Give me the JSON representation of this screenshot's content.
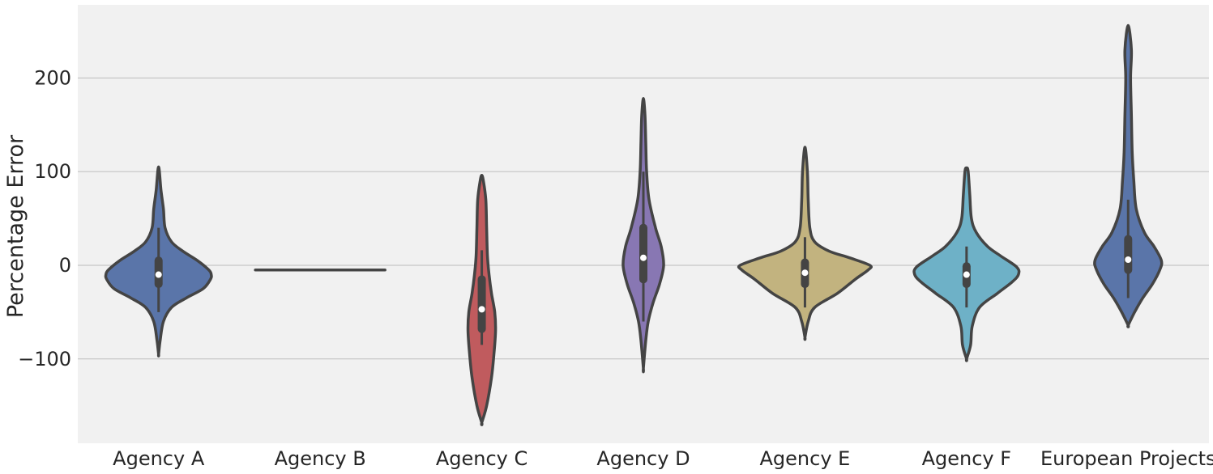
{
  "chart_data": {
    "type": "violin",
    "title": "",
    "xlabel": "",
    "ylabel": "Percentage Error",
    "ylim": [
      -190,
      278
    ],
    "yticks": [
      -100,
      0,
      100,
      200
    ],
    "ytick_labels": [
      "−100",
      "0",
      "100",
      "200"
    ],
    "grid": true,
    "categories": [
      "Agency A",
      "Agency B",
      "Agency C",
      "Agency D",
      "Agency E",
      "Agency F",
      "European Projects"
    ],
    "series": [
      {
        "category": "Agency A",
        "color": "#5a75a9",
        "min": -95,
        "max": 105,
        "q1": -20,
        "median": -10,
        "q3": 5,
        "whisker_low": -50,
        "whisker_high": 40,
        "profile": [
          [
            -95,
            0
          ],
          [
            -80,
            2
          ],
          [
            -60,
            6
          ],
          [
            -45,
            16
          ],
          [
            -35,
            34
          ],
          [
            -25,
            55
          ],
          [
            -15,
            64
          ],
          [
            -10,
            65
          ],
          [
            -5,
            62
          ],
          [
            5,
            48
          ],
          [
            15,
            30
          ],
          [
            25,
            16
          ],
          [
            40,
            8
          ],
          [
            60,
            6
          ],
          [
            80,
            3
          ],
          [
            105,
            0
          ]
        ]
      },
      {
        "category": "Agency B",
        "color": "#5a75a9",
        "min": -5,
        "max": -5,
        "q1": -5,
        "median": -5,
        "q3": -5,
        "whisker_low": -5,
        "whisker_high": -5,
        "profile": [
          [
            -6,
            0
          ],
          [
            -5,
            80
          ],
          [
            -4,
            0
          ]
        ]
      },
      {
        "category": "Agency C",
        "color": "#c05b5e",
        "min": -168,
        "max": 96,
        "q1": -68,
        "median": -47,
        "q3": -15,
        "whisker_low": -85,
        "whisker_high": 16,
        "profile": [
          [
            -168,
            0
          ],
          [
            -150,
            6
          ],
          [
            -120,
            12
          ],
          [
            -95,
            15
          ],
          [
            -70,
            17
          ],
          [
            -50,
            16
          ],
          [
            -30,
            12
          ],
          [
            -10,
            9
          ],
          [
            10,
            7
          ],
          [
            40,
            6
          ],
          [
            70,
            5
          ],
          [
            90,
            2
          ],
          [
            96,
            0
          ]
        ]
      },
      {
        "category": "Agency D",
        "color": "#8877b3",
        "min": -110,
        "max": 178,
        "q1": -15,
        "median": 8,
        "q3": 40,
        "whisker_low": -60,
        "whisker_high": 100,
        "profile": [
          [
            -110,
            0
          ],
          [
            -80,
            3
          ],
          [
            -60,
            6
          ],
          [
            -40,
            12
          ],
          [
            -20,
            20
          ],
          [
            0,
            25
          ],
          [
            20,
            22
          ],
          [
            40,
            15
          ],
          [
            70,
            7
          ],
          [
            100,
            4
          ],
          [
            130,
            3
          ],
          [
            160,
            2
          ],
          [
            178,
            0
          ]
        ]
      },
      {
        "category": "Agency E",
        "color": "#c2b37f",
        "min": -77,
        "max": 126,
        "q1": -20,
        "median": -8,
        "q3": 3,
        "whisker_low": -45,
        "whisker_high": 30,
        "profile": [
          [
            -77,
            0
          ],
          [
            -60,
            4
          ],
          [
            -45,
            12
          ],
          [
            -30,
            40
          ],
          [
            -15,
            62
          ],
          [
            -5,
            78
          ],
          [
            0,
            80
          ],
          [
            8,
            55
          ],
          [
            15,
            30
          ],
          [
            25,
            12
          ],
          [
            40,
            6
          ],
          [
            70,
            4
          ],
          [
            100,
            3
          ],
          [
            126,
            0
          ]
        ]
      },
      {
        "category": "Agency F",
        "color": "#6eb1c7",
        "min": -100,
        "max": 104,
        "q1": -20,
        "median": -10,
        "q3": -1,
        "whisker_low": -45,
        "whisker_high": 20,
        "profile": [
          [
            -100,
            0
          ],
          [
            -85,
            5
          ],
          [
            -65,
            7
          ],
          [
            -45,
            16
          ],
          [
            -30,
            38
          ],
          [
            -18,
            56
          ],
          [
            -10,
            64
          ],
          [
            -2,
            62
          ],
          [
            10,
            42
          ],
          [
            20,
            26
          ],
          [
            35,
            12
          ],
          [
            50,
            6
          ],
          [
            75,
            4
          ],
          [
            100,
            2
          ],
          [
            104,
            0
          ]
        ]
      },
      {
        "category": "European Projects",
        "color": "#5a75a9",
        "min": -64,
        "max": 256,
        "q1": -5,
        "median": 6,
        "q3": 28,
        "whisker_low": -35,
        "whisker_high": 70,
        "profile": [
          [
            -64,
            0
          ],
          [
            -50,
            8
          ],
          [
            -35,
            18
          ],
          [
            -20,
            30
          ],
          [
            -5,
            39
          ],
          [
            5,
            41
          ],
          [
            20,
            32
          ],
          [
            35,
            20
          ],
          [
            60,
            10
          ],
          [
            90,
            7
          ],
          [
            120,
            5
          ],
          [
            160,
            4
          ],
          [
            200,
            3
          ],
          [
            230,
            4
          ],
          [
            256,
            0
          ]
        ]
      }
    ]
  }
}
